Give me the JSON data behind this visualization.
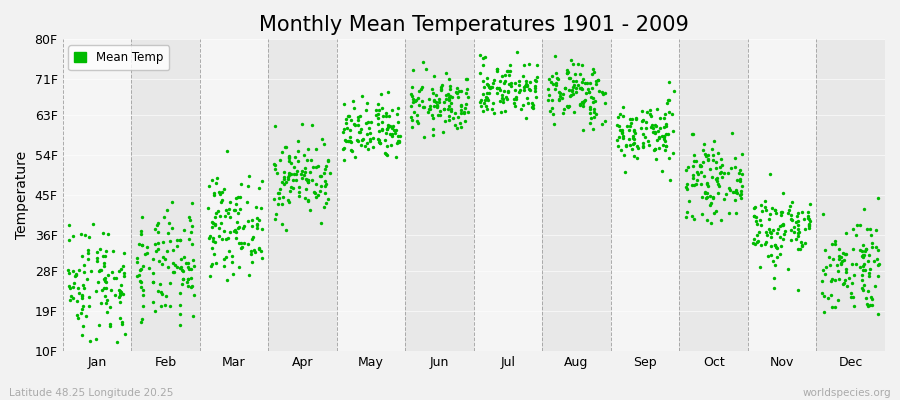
{
  "title": "Monthly Mean Temperatures 1901 - 2009",
  "ylabel": "Temperature",
  "yticks": [
    10,
    19,
    28,
    36,
    45,
    54,
    63,
    71,
    80
  ],
  "ytick_labels": [
    "10F",
    "19F",
    "28F",
    "36F",
    "45F",
    "54F",
    "63F",
    "71F",
    "80F"
  ],
  "ylim": [
    10,
    80
  ],
  "months": [
    "Jan",
    "Feb",
    "Mar",
    "Apr",
    "May",
    "Jun",
    "Jul",
    "Aug",
    "Sep",
    "Oct",
    "Nov",
    "Dec"
  ],
  "dot_color": "#00BB00",
  "background_color": "#f2f2f2",
  "plot_bg_color_light": "#f5f5f5",
  "plot_bg_color_dark": "#e8e8e8",
  "grid_color": "#999999",
  "title_fontsize": 15,
  "axis_fontsize": 10,
  "tick_fontsize": 9,
  "footer_left": "Latitude 48.25 Longitude 20.25",
  "footer_right": "worldspecies.org",
  "legend_label": "Mean Temp",
  "n_years": 109,
  "monthly_means_C": [
    -3.5,
    -2.0,
    3.5,
    9.5,
    15.0,
    18.5,
    20.5,
    20.0,
    15.0,
    9.0,
    3.0,
    -1.5
  ],
  "monthly_stds_C": [
    3.8,
    3.5,
    3.0,
    2.5,
    2.0,
    1.8,
    1.8,
    2.0,
    2.0,
    2.2,
    2.5,
    3.2
  ],
  "seed": 42
}
